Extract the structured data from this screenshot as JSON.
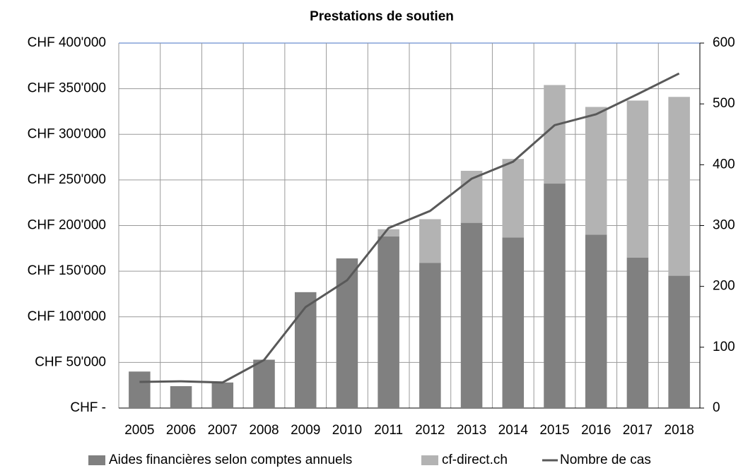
{
  "chart_data": {
    "type": "bar",
    "title": "Prestations de soutien",
    "categories": [
      "2005",
      "2006",
      "2007",
      "2008",
      "2009",
      "2010",
      "2011",
      "2012",
      "2013",
      "2014",
      "2015",
      "2016",
      "2017",
      "2018"
    ],
    "series": [
      {
        "name": "Aides financières selon comptes annuels",
        "type": "bar",
        "color": "#808080",
        "values": [
          40000,
          24000,
          28000,
          53000,
          127000,
          164000,
          188000,
          159000,
          203000,
          187000,
          246000,
          190000,
          165000,
          145000
        ]
      },
      {
        "name": "cf-direct.ch",
        "type": "bar",
        "color": "#b3b3b3",
        "values": [
          0,
          0,
          0,
          0,
          0,
          0,
          8000,
          48000,
          57000,
          86000,
          108000,
          140000,
          172000,
          196000
        ]
      },
      {
        "name": "Nombre de cas",
        "type": "line",
        "axis": "y2",
        "color": "#595959",
        "values": [
          43,
          44,
          42,
          79,
          166,
          210,
          296,
          324,
          377,
          405,
          465,
          483,
          516,
          550
        ]
      }
    ],
    "stacked": true,
    "ylim": [
      0,
      400000
    ],
    "yticks": [
      {
        "value": 0,
        "label": "CHF -"
      },
      {
        "value": 50000,
        "label": "CHF 50'000"
      },
      {
        "value": 100000,
        "label": "CHF 100'000"
      },
      {
        "value": 150000,
        "label": "CHF 150'000"
      },
      {
        "value": 200000,
        "label": "CHF 200'000"
      },
      {
        "value": 250000,
        "label": "CHF 250'000"
      },
      {
        "value": 300000,
        "label": "CHF 300'000"
      },
      {
        "value": 350000,
        "label": "CHF 350'000"
      },
      {
        "value": 400000,
        "label": "CHF 400'000"
      }
    ],
    "y2lim": [
      0,
      600
    ],
    "y2ticks": [
      0,
      100,
      200,
      300,
      400,
      500,
      600
    ],
    "grid": true,
    "legend": "bottom"
  }
}
